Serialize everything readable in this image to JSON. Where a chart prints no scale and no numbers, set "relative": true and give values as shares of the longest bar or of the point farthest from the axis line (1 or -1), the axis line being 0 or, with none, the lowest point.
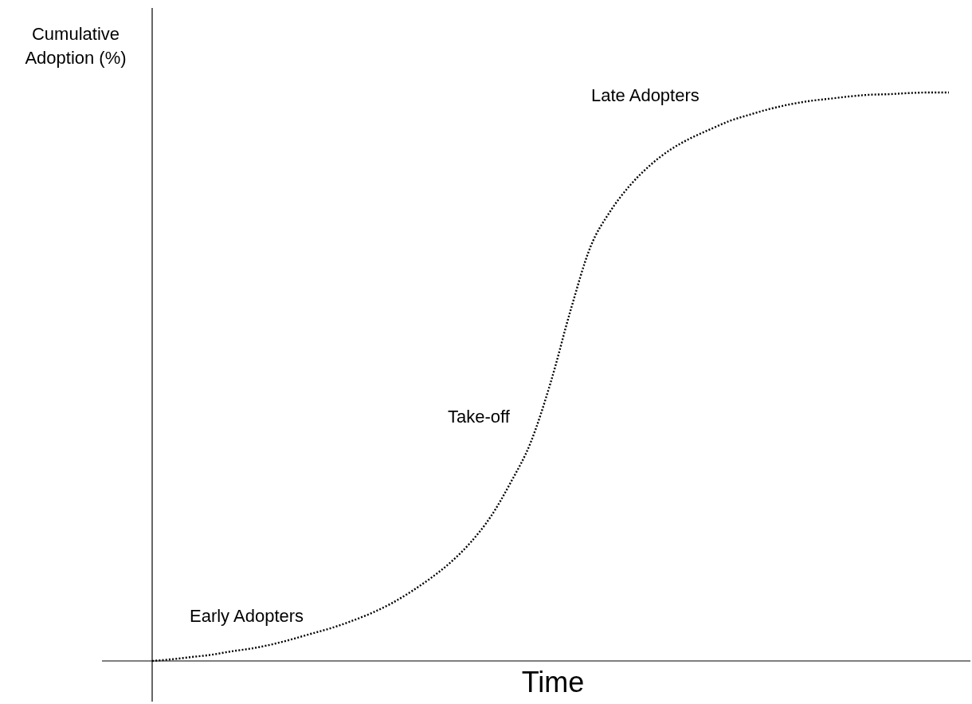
{
  "chart_data": {
    "type": "line",
    "relative": true,
    "xlabel": "Time",
    "ylabel": "Cumulative Adoption (%)",
    "annotations": [
      "Early Adopters",
      "Take-off",
      "Late Adopters"
    ],
    "categories": [
      null,
      null,
      null,
      null,
      null,
      null,
      null,
      null,
      null,
      null,
      null,
      null,
      null,
      null,
      null,
      null,
      null,
      null,
      null,
      null,
      null,
      null,
      null,
      null,
      null,
      null,
      null,
      null,
      null,
      null,
      null,
      null,
      null,
      null,
      null,
      null,
      null,
      null,
      null,
      null,
      null
    ],
    "series": [
      {
        "color": "#000000",
        "values": [
          0,
          0.003,
          0.007,
          0.011,
          0.017,
          0.022,
          0.029,
          0.038,
          0.048,
          0.058,
          0.07,
          0.084,
          0.101,
          0.122,
          0.146,
          0.174,
          0.209,
          0.254,
          0.314,
          0.384,
          0.489,
          0.616,
          0.728,
          0.791,
          0.837,
          0.872,
          0.899,
          0.919,
          0.935,
          0.95,
          0.961,
          0.971,
          0.979,
          0.985,
          0.989,
          0.993,
          0.996,
          0.997,
          0.999,
          1,
          1
        ]
      }
    ],
    "line_style": "dotted",
    "marker": "none"
  }
}
